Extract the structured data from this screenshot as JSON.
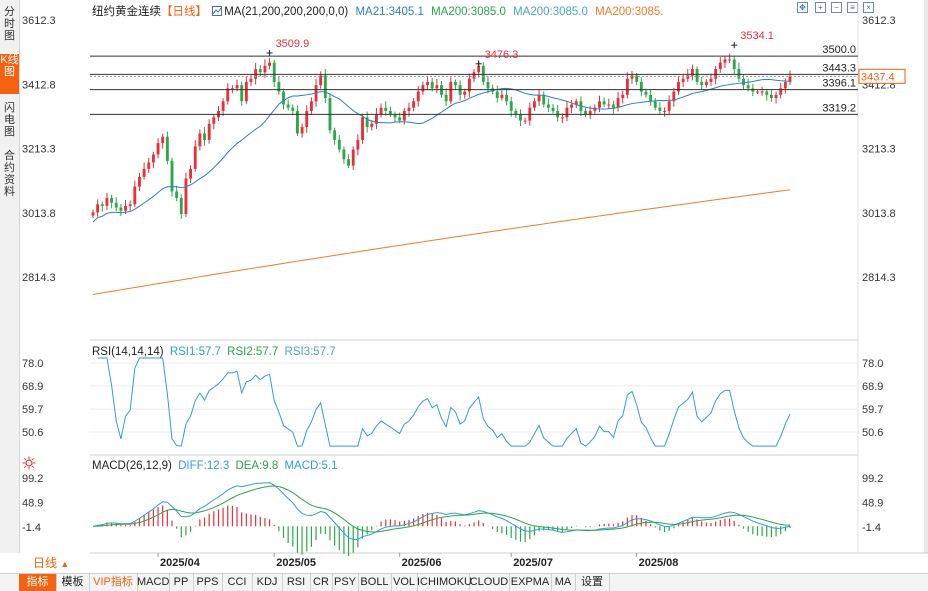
{
  "left_tabs": [
    "分时图",
    "K线图",
    "闪电图",
    "合约资料"
  ],
  "header": {
    "symbol": "纽约黄金连续",
    "period_tag": "【日线】",
    "ma_spec": "MA(21,200,200,200,0,0)",
    "ma21": "MA21:3405.1",
    "ma200a": "MA200:3085.0",
    "ma200b": "MA200:3085.0",
    "ma200c": "MA200:3085.",
    "rsi_spec": "RSI(14,14,14)",
    "rsi1": "RSI1:57.7",
    "rsi2": "RSI2:57.7",
    "rsi3": "RSI3:57.7",
    "macd_spec": "MACD(26,12,9)",
    "diff": "DIFF:12.3",
    "dea": "DEA:9.8",
    "macd": "MACD:5.1"
  },
  "colors": {
    "up": "#e8303a",
    "down": "#2ca84a",
    "ma21": "#2f7fbf",
    "ma200": "#ef7a2c",
    "accent": "#f5620f",
    "last_price_bg": "#f5620f"
  },
  "chart_data": {
    "type": "candlestick",
    "price_axis_ticks": [
      3612.3,
      3412.8,
      3213.3,
      3013.8,
      2814.3
    ],
    "price_axis_labels": [
      "3612.3",
      "3412.8",
      "3213.3",
      "3013.8",
      "2814.3"
    ],
    "last_price": "3437.4",
    "horizontal_levels": [
      {
        "value": 3500.0,
        "label": "3500.0"
      },
      {
        "value": 3443.3,
        "label": "3443.3"
      },
      {
        "value": 3396.1,
        "label": "3396.1"
      },
      {
        "value": 3319.2,
        "label": "3319.2"
      }
    ],
    "peak_annotations": [
      {
        "label": "3509.9",
        "value": 3509.9,
        "date_index": 38
      },
      {
        "label": "3476.3",
        "value": 3476.3,
        "date_index": 83
      },
      {
        "label": "3534.1",
        "value": 3534.1,
        "date_index": 138
      }
    ],
    "x_axis_labels": [
      {
        "label": "2025/04",
        "date_index": 14
      },
      {
        "label": "2025/05",
        "date_index": 39
      },
      {
        "label": "2025/06",
        "date_index": 66
      },
      {
        "label": "2025/07",
        "date_index": 90
      },
      {
        "label": "2025/08",
        "date_index": 117
      }
    ],
    "closes": [
      3015,
      3040,
      3035,
      3060,
      3045,
      3030,
      3020,
      3035,
      3040,
      3095,
      3125,
      3150,
      3170,
      3195,
      3230,
      3250,
      3175,
      3080,
      3060,
      3010,
      3120,
      3150,
      3220,
      3260,
      3240,
      3290,
      3310,
      3330,
      3360,
      3400,
      3400,
      3410,
      3360,
      3420,
      3430,
      3460,
      3450,
      3470,
      3480,
      3420,
      3390,
      3350,
      3340,
      3330,
      3260,
      3280,
      3330,
      3360,
      3410,
      3440,
      3370,
      3270,
      3240,
      3210,
      3180,
      3160,
      3210,
      3240,
      3310,
      3280,
      3290,
      3320,
      3340,
      3330,
      3320,
      3310,
      3300,
      3330,
      3340,
      3360,
      3390,
      3410,
      3420,
      3400,
      3410,
      3380,
      3360,
      3420,
      3410,
      3380,
      3390,
      3430,
      3450,
      3470,
      3420,
      3400,
      3390,
      3370,
      3380,
      3360,
      3330,
      3320,
      3300,
      3300,
      3340,
      3360,
      3380,
      3350,
      3340,
      3330,
      3310,
      3310,
      3340,
      3350,
      3360,
      3330,
      3320,
      3330,
      3340,
      3360,
      3350,
      3350,
      3340,
      3370,
      3380,
      3430,
      3440,
      3420,
      3390,
      3380,
      3360,
      3340,
      3330,
      3330,
      3360,
      3390,
      3420,
      3430,
      3440,
      3460,
      3420,
      3410,
      3420,
      3430,
      3460,
      3480,
      3490,
      3490,
      3460,
      3430,
      3410,
      3400,
      3390,
      3390,
      3390,
      3380,
      3370,
      3380,
      3400,
      3420,
      3437.4
    ],
    "ma21_end": 3405.1,
    "ma200_end": 3085.0,
    "rsi": {
      "axis_ticks": [
        78.0,
        68.9,
        59.7,
        50.6
      ],
      "axis_labels": [
        "78.0",
        "68.9",
        "59.7",
        "50.6"
      ],
      "last": 57.7
    },
    "macd": {
      "axis_ticks": [
        99.2,
        48.9,
        -1.4
      ],
      "axis_labels": [
        "99.2",
        "48.9",
        "-1.4"
      ],
      "diff": 12.3,
      "dea": 9.8,
      "macd": 5.1
    }
  },
  "bottom": {
    "period_button": "日线",
    "tabs": [
      "指标",
      "模板",
      "VIP指标",
      "MACD",
      "PP",
      "PPS",
      "CCI",
      "KDJ",
      "RSI",
      "CR",
      "PSY",
      "BOLL",
      "VOL",
      "ICHIMOKU",
      "CLOUD",
      "EXPMA",
      "MA",
      "设置"
    ]
  },
  "toolbar_icons": [
    "expand-icon",
    "zoom-in-icon",
    "zoom-out-icon",
    "settings-icon",
    "close-icon"
  ]
}
